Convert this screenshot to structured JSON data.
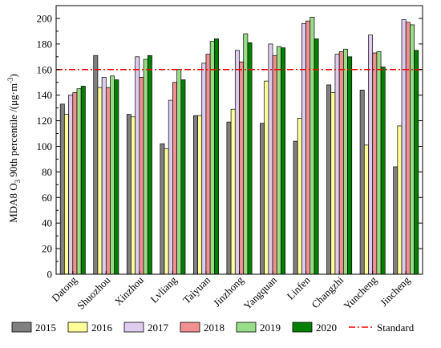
{
  "chart_data": {
    "type": "bar",
    "ylabel_main": "MDA8 O",
    "ylabel_sub": "3",
    "ylabel_rest": " 90th percentile /(μg·m",
    "ylabel_sup": "-3",
    "ylabel_end": ")",
    "ylim": [
      0,
      210
    ],
    "yticks": [
      "0",
      "20",
      "40",
      "60",
      "80",
      "100",
      "120",
      "140",
      "160",
      "180",
      "200"
    ],
    "categories": [
      "Datong",
      "Shuozhou",
      "Xinzhou",
      "Lvliang",
      "Taiyuan",
      "Jinzhong",
      "Yangquan",
      "Linfen",
      "Changzhi",
      "Yuncheng",
      "Jincheng"
    ],
    "series": [
      {
        "name": "2015",
        "color": "#808080",
        "values": [
          133,
          171,
          125,
          102,
          124,
          119,
          118,
          104,
          148,
          144,
          84
        ]
      },
      {
        "name": "2016",
        "color": "#ffff99",
        "values": [
          125,
          146,
          123,
          98,
          124,
          129,
          151,
          122,
          142,
          101,
          116
        ]
      },
      {
        "name": "2017",
        "color": "#ddccee",
        "values": [
          140,
          154,
          170,
          136,
          165,
          175,
          180,
          196,
          172,
          187,
          199
        ]
      },
      {
        "name": "2018",
        "color": "#f09090",
        "values": [
          142,
          146,
          154,
          150,
          172,
          166,
          171,
          198,
          174,
          173,
          197
        ]
      },
      {
        "name": "2019",
        "color": "#99dd88",
        "values": [
          145,
          155,
          168,
          160,
          182,
          188,
          178,
          201,
          176,
          174,
          195
        ]
      },
      {
        "name": "2020",
        "color": "#008000",
        "values": [
          147,
          152,
          171,
          152,
          184,
          181,
          177,
          184,
          170,
          162,
          175
        ]
      }
    ],
    "reference_line": {
      "name": "Standard",
      "value": 160,
      "color": "#ff0000"
    },
    "legend_position": "bottom"
  }
}
